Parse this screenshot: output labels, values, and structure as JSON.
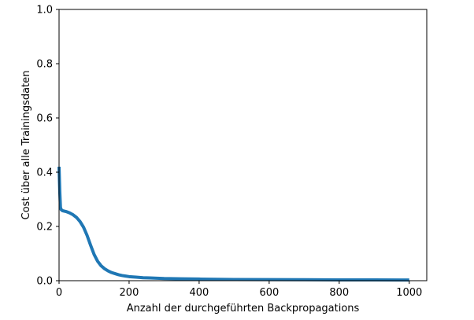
{
  "chart_data": {
    "type": "line",
    "title": "",
    "xlabel": "Anzahl der durchgeführten Backpropagations",
    "ylabel": "Cost über alle Trainingsdaten",
    "xlim": [
      0,
      1050
    ],
    "ylim": [
      0.0,
      1.0
    ],
    "xticks": [
      0,
      200,
      400,
      600,
      800,
      1000
    ],
    "xtick_labels": [
      "0",
      "200",
      "400",
      "600",
      "800",
      "1000"
    ],
    "yticks": [
      0.0,
      0.2,
      0.4,
      0.6,
      0.8,
      1.0
    ],
    "ytick_labels": [
      "0.0",
      "0.2",
      "0.4",
      "0.6",
      "0.8",
      "1.0"
    ],
    "grid": false,
    "legend": "none",
    "series": [
      {
        "color": "#1f77b4",
        "x": [
          0,
          2,
          4,
          6,
          10,
          20,
          30,
          40,
          50,
          60,
          70,
          80,
          90,
          100,
          110,
          120,
          130,
          140,
          150,
          160,
          170,
          180,
          190,
          200,
          220,
          240,
          260,
          280,
          300,
          350,
          400,
          450,
          500,
          600,
          700,
          800,
          900,
          1000
        ],
        "y": [
          0.42,
          0.33,
          0.27,
          0.262,
          0.258,
          0.255,
          0.25,
          0.243,
          0.233,
          0.218,
          0.197,
          0.167,
          0.131,
          0.097,
          0.072,
          0.055,
          0.044,
          0.036,
          0.03,
          0.026,
          0.022,
          0.019,
          0.017,
          0.015,
          0.013,
          0.011,
          0.01,
          0.009,
          0.008,
          0.007,
          0.006,
          0.005,
          0.0045,
          0.004,
          0.0035,
          0.003,
          0.003,
          0.0025
        ]
      }
    ]
  }
}
